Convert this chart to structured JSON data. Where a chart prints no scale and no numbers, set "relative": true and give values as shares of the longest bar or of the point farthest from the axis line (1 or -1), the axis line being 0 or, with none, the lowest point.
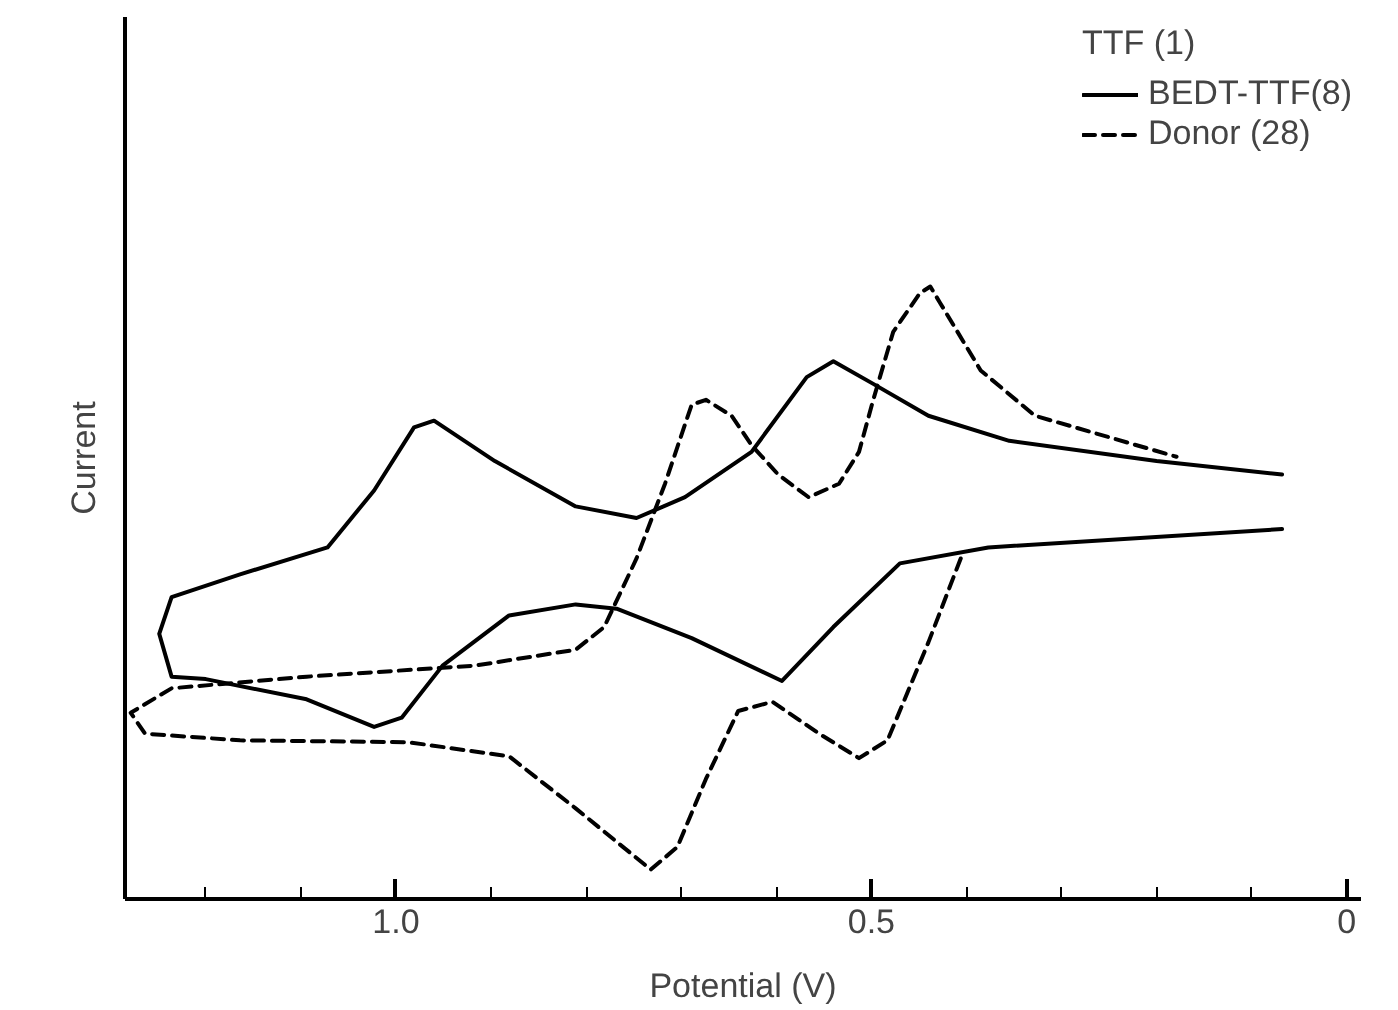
{
  "chart_data": {
    "type": "line",
    "relative": true,
    "xlabel": "Potential (V)",
    "ylabel": "Current",
    "legend_title": "TTF (1)",
    "legend": "top right",
    "grid": false,
    "marker": "none",
    "xlim": [
      1.285,
      -0.015
    ],
    "xticks": [
      {
        "value": 1.2,
        "label": null
      },
      {
        "value": 1.1,
        "label": null
      },
      {
        "value": 1.0,
        "label": "1.0"
      },
      {
        "value": 0.9,
        "label": null
      },
      {
        "value": 0.8,
        "label": null
      },
      {
        "value": 0.7,
        "label": null
      },
      {
        "value": 0.6,
        "label": null
      },
      {
        "value": 0.5,
        "label": "0.5"
      },
      {
        "value": 0.4,
        "label": null
      },
      {
        "value": 0.3,
        "label": null
      },
      {
        "value": 0.2,
        "label": null
      },
      {
        "value": 0.1,
        "label": null
      },
      {
        "value": 0,
        "label": "0"
      }
    ],
    "series": [
      {
        "name": "BEDT-TTF(8)",
        "color": "#000000",
        "line_style": "solid",
        "x": [
          0.068,
          0.2,
          0.355,
          0.44,
          0.498,
          0.54,
          0.568,
          0.626,
          0.696,
          0.747,
          0.811,
          0.896,
          0.96,
          0.981,
          1.023,
          1.072,
          1.164,
          1.236,
          1.249,
          1.236,
          1.2,
          1.094,
          1.023,
          0.994,
          0.951,
          0.881,
          0.811,
          0.768,
          0.689,
          0.594,
          0.54,
          0.47,
          0.377,
          0.068
        ],
        "values": [
          0.693,
          0.715,
          0.748,
          0.789,
          0.841,
          0.878,
          0.852,
          0.73,
          0.656,
          0.622,
          0.641,
          0.715,
          0.781,
          0.77,
          0.667,
          0.574,
          0.53,
          0.493,
          0.433,
          0.363,
          0.359,
          0.326,
          0.281,
          0.296,
          0.381,
          0.463,
          0.481,
          0.474,
          0.426,
          0.356,
          0.444,
          0.548,
          0.574,
          0.604
        ]
      },
      {
        "name": "Donor (28)",
        "color": "#000000",
        "line_style": "dashed",
        "x": [
          0.406,
          0.44,
          0.483,
          0.513,
          0.555,
          0.604,
          0.64,
          0.674,
          0.704,
          0.732,
          0.811,
          0.881,
          0.987,
          1.164,
          1.264,
          1.279,
          1.236,
          1.094,
          0.917,
          0.811,
          0.781,
          0.747,
          0.717,
          0.689,
          0.674,
          0.647,
          0.626,
          0.598,
          0.566,
          0.534,
          0.513,
          0.498,
          0.477,
          0.449,
          0.438,
          0.428,
          0.385,
          0.328,
          0.179
        ],
        "values": [
          0.556,
          0.419,
          0.259,
          0.23,
          0.27,
          0.322,
          0.307,
          0.196,
          0.085,
          0.048,
          0.148,
          0.233,
          0.256,
          0.259,
          0.27,
          0.304,
          0.344,
          0.363,
          0.381,
          0.407,
          0.444,
          0.556,
          0.678,
          0.807,
          0.815,
          0.789,
          0.741,
          0.693,
          0.656,
          0.678,
          0.73,
          0.815,
          0.926,
          0.989,
          1.0,
          0.974,
          0.863,
          0.789,
          0.722
        ]
      }
    ]
  }
}
